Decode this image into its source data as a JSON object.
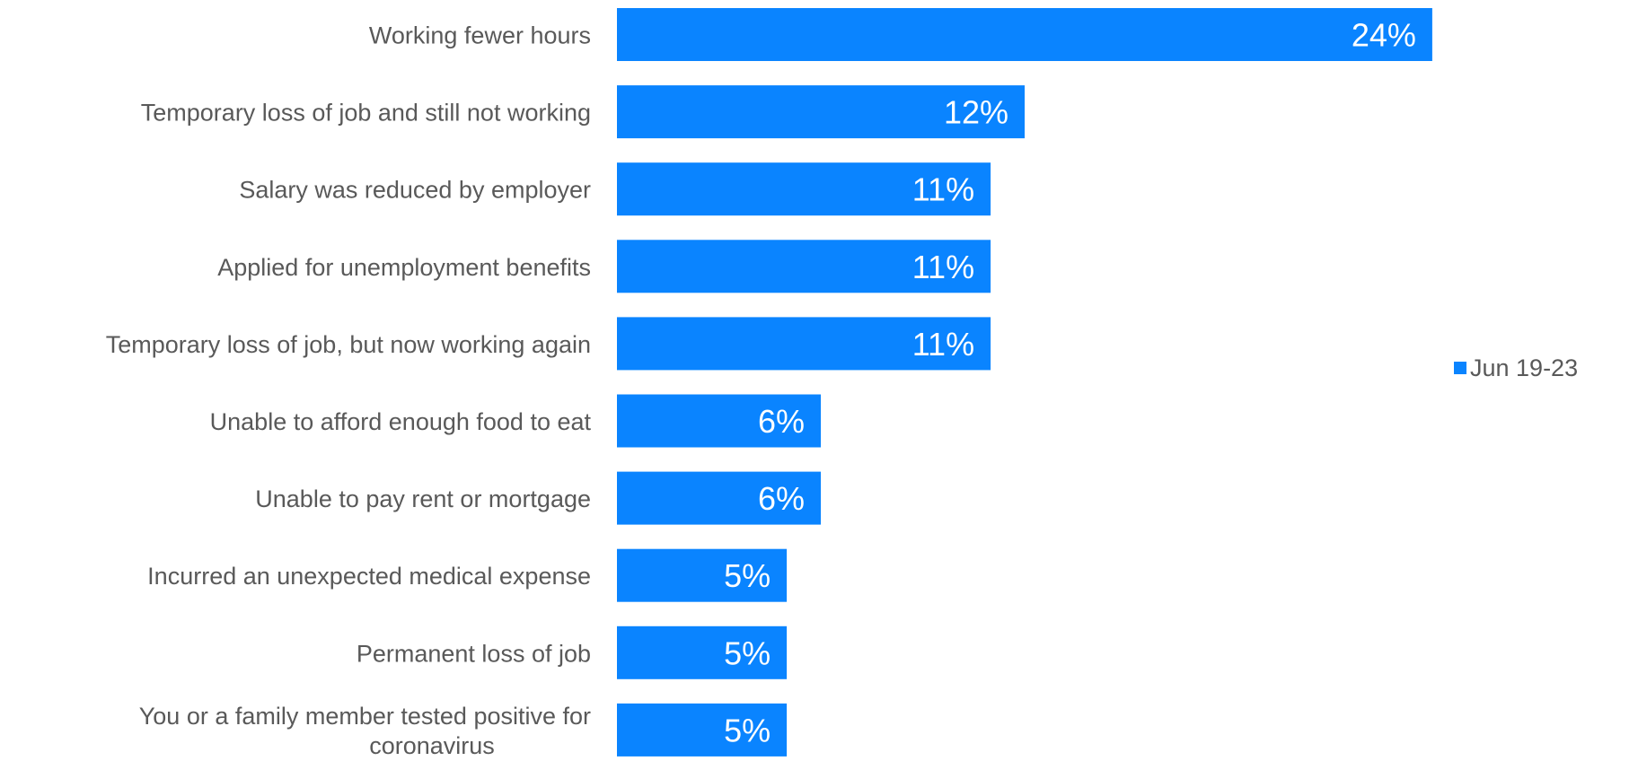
{
  "chart_data": {
    "type": "bar",
    "orientation": "horizontal",
    "categories": [
      "Working fewer hours",
      "Temporary loss of job and still not working",
      "Salary was reduced by employer",
      "Applied for unemployment benefits",
      "Temporary loss of job, but now working again",
      "Unable to afford enough food to eat",
      "Unable to pay rent or mortgage",
      "Incurred an unexpected medical expense",
      "Permanent loss of job",
      "You or a family member tested positive for coronavirus"
    ],
    "series": [
      {
        "name": "Jun 19-23",
        "values": [
          24,
          12,
          11,
          11,
          11,
          6,
          6,
          5,
          5,
          5
        ],
        "data_labels": [
          "24%",
          "12%",
          "11%",
          "11%",
          "11%",
          "6%",
          "6%",
          "5%",
          "5%",
          "5%"
        ],
        "color": "#0a84ff"
      }
    ],
    "legend_position": "right",
    "grid": false,
    "title": "",
    "xlabel": "",
    "ylabel": ""
  }
}
